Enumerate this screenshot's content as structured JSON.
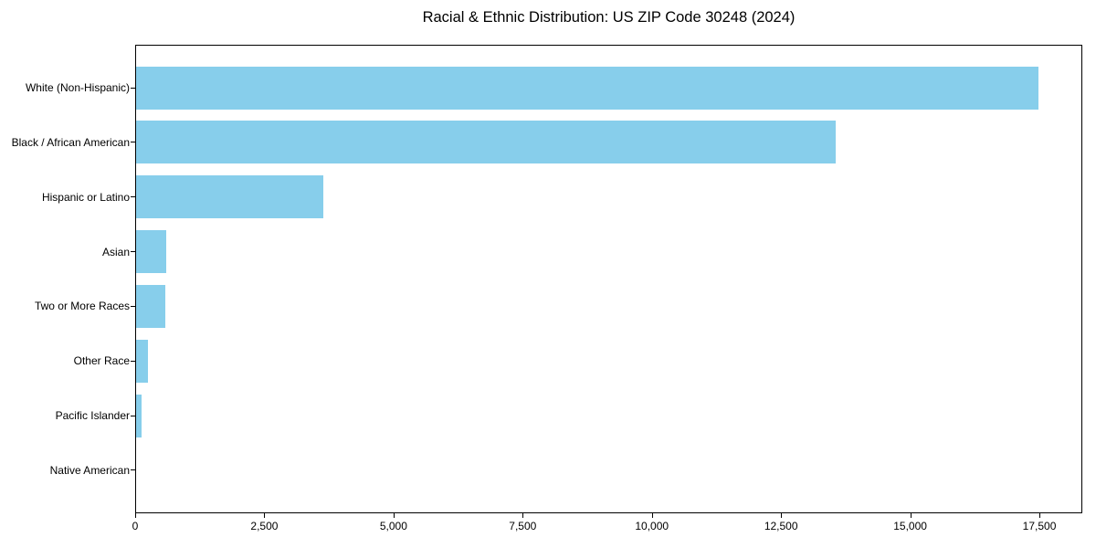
{
  "title": "Racial & Ethnic Distribution: US ZIP Code 30248 (2024)",
  "chart_data": {
    "type": "bar",
    "orientation": "horizontal",
    "title": "Racial & Ethnic Distribution: US ZIP Code 30248 (2024)",
    "categories": [
      "White (Non-Hispanic)",
      "Black / African American",
      "Hispanic or Latino",
      "Asian",
      "Two or More Races",
      "Other Race",
      "Pacific Islander",
      "Native American"
    ],
    "values": [
      17470,
      13540,
      3620,
      580,
      570,
      230,
      105,
      0
    ],
    "xlabel": "",
    "ylabel": "",
    "xlim": [
      0,
      18330
    ],
    "xticks": [
      0,
      2500,
      5000,
      7500,
      10000,
      12500,
      15000,
      17500
    ],
    "xtick_labels": [
      "0",
      "2,500",
      "5,000",
      "7,500",
      "10,000",
      "12,500",
      "15,000",
      "17,500"
    ],
    "bar_color": "#87CEEB",
    "spine_color": "#000000",
    "text_color": "#000000",
    "grid": false,
    "legend": null
  }
}
